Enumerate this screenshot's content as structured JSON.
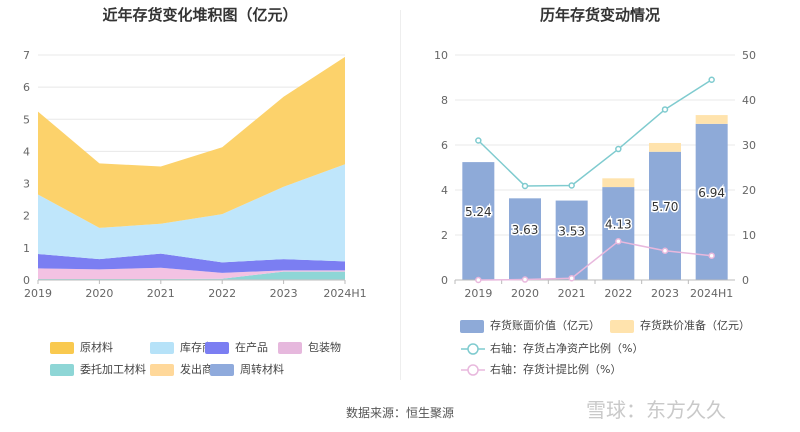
{
  "footer": "数据来源：恒生聚源",
  "watermark": "雪球：东方久久",
  "chart_data": [
    {
      "type": "area",
      "stacked": true,
      "title": "近年存货变化堆积图（亿元）",
      "categories": [
        "2019",
        "2020",
        "2021",
        "2022",
        "2023",
        "2024H1"
      ],
      "ylim": [
        0,
        7
      ],
      "yticks": [
        "0",
        "1",
        "2",
        "3",
        "4",
        "5",
        "6",
        "7"
      ],
      "legend_position": "bottom",
      "grid": true,
      "series": [
        {
          "name": "周转材料",
          "color": "#8faadc",
          "values": [
            0.02,
            0.02,
            0.02,
            0.02,
            0.02,
            0.02
          ]
        },
        {
          "name": "发出商品",
          "color": "#ffe4a8",
          "values": [
            0.0,
            0.0,
            0.0,
            0.0,
            0.0,
            0.0
          ]
        },
        {
          "name": "委托加工材料",
          "color": "#8ed6d6",
          "values": [
            0.01,
            0.01,
            0.01,
            0.02,
            0.24,
            0.24
          ]
        },
        {
          "name": "包装物",
          "color": "#f3c2e3",
          "values": [
            0.33,
            0.3,
            0.35,
            0.18,
            0.04,
            0.04
          ]
        },
        {
          "name": "在产品",
          "color": "#7b7ef2",
          "values": [
            0.45,
            0.32,
            0.44,
            0.33,
            0.35,
            0.28
          ]
        },
        {
          "name": "库存商品",
          "color": "#bfe6fb",
          "values": [
            1.85,
            0.97,
            0.93,
            1.5,
            2.25,
            3.02
          ]
        },
        {
          "name": "原材料",
          "color": "#fcd26b",
          "values": [
            2.58,
            2.01,
            1.78,
            2.08,
            2.8,
            3.34
          ]
        }
      ],
      "legend_order": [
        "原材料",
        "库存商品",
        "在产品",
        "包装物",
        "委托加工材料",
        "发出商品",
        "周转材料"
      ],
      "legend_colors": {
        "原材料": "#f9c94f",
        "库存商品": "#b6e2f8",
        "在产品": "#7b7ef2",
        "包装物": "#e6b8dd",
        "委托加工材料": "#8ed6d6",
        "发出商品": "#ffd89a",
        "周转材料": "#8faadc"
      }
    },
    {
      "type": "bar+line",
      "title": "历年存货变动情况",
      "categories": [
        "2019",
        "2020",
        "2021",
        "2022",
        "2023",
        "2024H1"
      ],
      "ylim_left": [
        0,
        10
      ],
      "yticks_left": [
        "0",
        "2",
        "4",
        "6",
        "8",
        "10"
      ],
      "ylim_right": [
        0,
        50
      ],
      "yticks_right": [
        "0",
        "10",
        "20",
        "30",
        "40",
        "50"
      ],
      "legend_position": "bottom",
      "grid": true,
      "bars": [
        {
          "name": "存货账面价值（亿元）",
          "color": "#8eaad8",
          "values": [
            5.24,
            3.63,
            3.53,
            4.13,
            5.7,
            6.94
          ],
          "labels": [
            "5.24",
            "3.63",
            "3.53",
            "4.13",
            "5.70",
            "6.94"
          ]
        },
        {
          "name": "存货跌价准备（亿元）",
          "color": "#ffe3ad",
          "values": [
            0.0,
            0.0,
            0.0,
            0.39,
            0.39,
            0.39
          ]
        }
      ],
      "lines": [
        {
          "name": "右轴：存货占净资产比例（%）",
          "color": "#7fcbcf",
          "values": [
            31.0,
            20.9,
            21.0,
            29.1,
            37.9,
            44.5
          ]
        },
        {
          "name": "右轴：存货计提比例（%）",
          "color": "#e8b8dd",
          "values": [
            0.0,
            0.1,
            0.4,
            8.6,
            6.5,
            5.4
          ]
        }
      ]
    }
  ]
}
